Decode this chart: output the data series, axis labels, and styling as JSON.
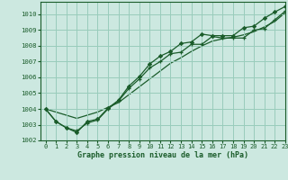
{
  "title": "Graphe pression niveau de la mer (hPa)",
  "bg_color": "#cce8e0",
  "grid_color": "#99ccbb",
  "line_color": "#1a5c2a",
  "xlim": [
    -0.5,
    23
  ],
  "ylim": [
    1002,
    1010.8
  ],
  "yticks": [
    1002,
    1003,
    1004,
    1005,
    1006,
    1007,
    1008,
    1009,
    1010
  ],
  "xticks": [
    0,
    1,
    2,
    3,
    4,
    5,
    6,
    7,
    8,
    9,
    10,
    11,
    12,
    13,
    14,
    15,
    16,
    17,
    18,
    19,
    20,
    21,
    22,
    23
  ],
  "series_marker": [
    1004.0,
    1003.2,
    1002.8,
    1002.6,
    1003.1,
    1003.3,
    1004.0,
    1004.5,
    1005.3,
    1005.9,
    1006.6,
    1007.0,
    1007.5,
    1007.6,
    1008.1,
    1008.1,
    1008.6,
    1008.5,
    1008.5,
    1008.5,
    1009.0,
    1009.1,
    1009.65,
    1010.2
  ],
  "series_diamond": [
    1004.0,
    1003.2,
    1002.8,
    1002.5,
    1003.2,
    1003.35,
    1004.05,
    1004.55,
    1005.45,
    1006.05,
    1006.85,
    1007.35,
    1007.65,
    1008.15,
    1008.25,
    1008.75,
    1008.65,
    1008.65,
    1008.65,
    1009.15,
    1009.25,
    1009.75,
    1010.15,
    1010.5
  ],
  "series_straight": [
    1004.0,
    1003.8,
    1003.6,
    1003.4,
    1003.6,
    1003.8,
    1004.1,
    1004.4,
    1004.9,
    1005.4,
    1005.9,
    1006.4,
    1006.9,
    1007.25,
    1007.65,
    1008.0,
    1008.3,
    1008.45,
    1008.55,
    1008.7,
    1008.9,
    1009.2,
    1009.55,
    1010.1
  ]
}
